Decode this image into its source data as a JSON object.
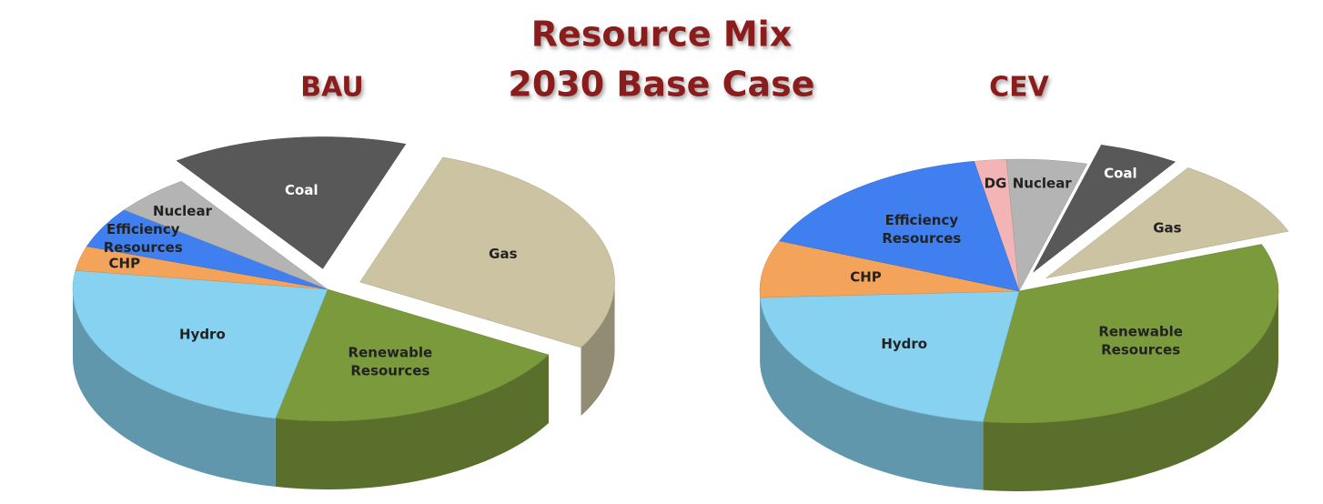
{
  "title": [
    "Resource Mix",
    "2030 Base Case"
  ],
  "chart_data": [
    {
      "type": "pie",
      "title": "BAU",
      "categories": [
        "Coal",
        "Gas",
        "Renewable Resources",
        "Hydro",
        "CHP",
        "Efficiency Resources",
        "Nuclear"
      ],
      "values": [
        15,
        28,
        20,
        24,
        3,
        5,
        5
      ],
      "colors": [
        "#585858",
        "#cbc3a2",
        "#7b9a3c",
        "#86d2f0",
        "#f4a35a",
        "#3f7ff0",
        "#b4b4b4"
      ],
      "explode": [
        true,
        true,
        false,
        false,
        false,
        false,
        false
      ]
    },
    {
      "type": "pie",
      "title": "CEV",
      "categories": [
        "DG",
        "Nuclear",
        "Coal",
        "Gas",
        "Renewable Resources",
        "Hydro",
        "CHP",
        "Efficiency Resources"
      ],
      "values": [
        2,
        5,
        5,
        10,
        33,
        22,
        7,
        16
      ],
      "colors": [
        "#f2b4b4",
        "#b4b4b4",
        "#585858",
        "#cbc3a2",
        "#7b9a3c",
        "#86d2f0",
        "#f4a35a",
        "#3f7ff0"
      ],
      "explode": [
        false,
        false,
        true,
        true,
        false,
        false,
        false,
        false
      ]
    }
  ]
}
